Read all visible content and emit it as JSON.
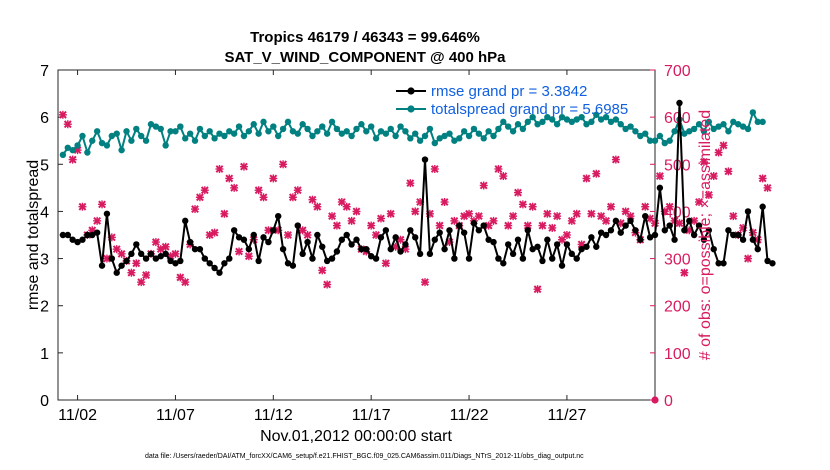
{
  "chart_data": {
    "type": "line",
    "title": "Tropics 46179 / 46343 = 99.646%",
    "subtitle": "SAT_V_WIND_COMPONENT @ 400 hPa",
    "xlabel": "Nov.01,2012 00:00:00 start",
    "ylabel_left": "rmse and totalspread",
    "ylabel_right": "# of obs: o=possible; ×=assimilated",
    "xlim": [
      0.5,
      31.0
    ],
    "ylim_left": [
      0,
      7
    ],
    "ylim_right": [
      0,
      700
    ],
    "x_tick_values": [
      1.5,
      6.5,
      11.5,
      16.5,
      21.5,
      26.5
    ],
    "x_tick_labels": [
      "11/02",
      "11/07",
      "11/12",
      "11/17",
      "11/22",
      "11/27"
    ],
    "y_left_ticks": [
      0,
      1,
      2,
      3,
      4,
      5,
      6,
      7
    ],
    "y_right_ticks": [
      0,
      100,
      200,
      300,
      400,
      500,
      600,
      700
    ],
    "legend": [
      {
        "name": "rmse grand pr = 3.3842",
        "color": "#000000"
      },
      {
        "name": "totalspread grand pr = 5.6985",
        "color": "#008080"
      }
    ],
    "footnote": "data file: /Users/raeder/DAI/ATM_forcXX/CAM6_setup/f.e21.FHIST_BGC.f09_025.CAM6assim.011/Diags_NTrS_2012-11/obs_diag_output.nc",
    "colors": {
      "rmse": "#000000",
      "spread": "#008080",
      "obs": "#d81b60"
    },
    "x_start": 0.75,
    "x_step": 0.25,
    "series": [
      {
        "name": "rmse",
        "axis": "left",
        "values": [
          3.5,
          3.5,
          3.4,
          3.35,
          3.4,
          3.5,
          3.5,
          3.55,
          2.85,
          3.95,
          3.0,
          2.7,
          2.85,
          2.95,
          3.1,
          3.3,
          3.1,
          3.0,
          3.1,
          3.0,
          3.05,
          3.1,
          2.95,
          2.9,
          2.95,
          3.8,
          3.35,
          3.2,
          3.2,
          3.0,
          2.9,
          2.8,
          2.7,
          2.9,
          3.0,
          3.6,
          3.45,
          3.4,
          3.2,
          3.5,
          2.95,
          3.45,
          3.35,
          3.6,
          3.9,
          3.2,
          2.9,
          2.85,
          3.7,
          3.1,
          3.35,
          3.0,
          3.5,
          3.25,
          2.95,
          3.0,
          3.15,
          3.4,
          3.5,
          3.3,
          3.4,
          3.2,
          3.2,
          3.05,
          3.0,
          3.45,
          3.6,
          3.2,
          3.45,
          3.15,
          3.3,
          3.6,
          3.45,
          3.1,
          5.1,
          3.1,
          3.4,
          3.55,
          3.2,
          3.6,
          3.0,
          3.7,
          3.55,
          3.0,
          3.75,
          3.6,
          3.7,
          3.4,
          3.35,
          3.0,
          2.9,
          3.3,
          3.1,
          3.4,
          3.0,
          3.6,
          3.2,
          3.25,
          2.95,
          3.4,
          3.0,
          3.3,
          2.85,
          3.3,
          3.1,
          3.0,
          3.2,
          3.25,
          3.45,
          3.25,
          3.55,
          3.5,
          3.6,
          3.8,
          3.55,
          3.7,
          3.8,
          3.6,
          3.4,
          3.9,
          3.45,
          3.5,
          4.5,
          3.6,
          3.7,
          3.4,
          6.3,
          3.6,
          3.8,
          3.5,
          3.7,
          3.4,
          3.6,
          3.2,
          2.9,
          2.9,
          3.6,
          3.5,
          3.5,
          3.4,
          4.0,
          3.4,
          3.2,
          4.1,
          2.95,
          2.9
        ]
      },
      {
        "name": "totalspread",
        "axis": "left",
        "values": [
          5.2,
          5.35,
          5.3,
          5.4,
          5.6,
          5.25,
          5.5,
          5.7,
          5.45,
          5.4,
          5.6,
          5.65,
          5.3,
          5.7,
          5.5,
          5.75,
          5.6,
          5.5,
          5.85,
          5.8,
          5.75,
          5.4,
          5.7,
          5.7,
          5.8,
          5.55,
          5.65,
          5.5,
          5.75,
          5.6,
          5.7,
          5.55,
          5.65,
          5.6,
          5.7,
          5.65,
          5.8,
          5.6,
          5.7,
          5.85,
          5.65,
          5.9,
          5.7,
          5.8,
          5.6,
          5.75,
          5.9,
          5.7,
          5.65,
          5.85,
          5.75,
          5.6,
          5.7,
          5.8,
          5.65,
          5.9,
          5.75,
          5.65,
          5.7,
          5.6,
          5.75,
          5.85,
          5.7,
          5.8,
          5.55,
          5.7,
          5.65,
          5.75,
          5.6,
          5.8,
          5.7,
          5.55,
          5.65,
          5.5,
          5.6,
          5.75,
          5.45,
          5.55,
          5.6,
          5.65,
          5.5,
          5.55,
          5.7,
          5.6,
          5.75,
          5.65,
          5.55,
          5.7,
          5.6,
          5.75,
          5.9,
          5.8,
          5.7,
          5.85,
          5.75,
          5.9,
          6.0,
          5.85,
          5.9,
          6.0,
          5.95,
          5.85,
          6.0,
          5.95,
          5.9,
          5.95,
          6.0,
          5.85,
          5.9,
          6.05,
          5.95,
          6.0,
          5.9,
          5.95,
          5.85,
          5.75,
          5.8,
          5.7,
          5.6,
          5.65,
          5.5,
          5.5,
          5.6,
          5.45,
          5.5,
          5.7,
          5.95,
          5.65,
          5.7,
          5.75,
          5.85,
          5.7,
          5.9,
          5.75,
          5.8,
          5.85,
          5.7,
          5.9,
          5.85,
          5.8,
          5.75,
          6.1,
          5.9,
          5.9
        ]
      },
      {
        "name": "obs_count",
        "axis": "right",
        "values": [
          605,
          585,
          510,
          530,
          410,
          350,
          360,
          380,
          415,
          300,
          345,
          320,
          310,
          295,
          270,
          290,
          250,
          265,
          310,
          335,
          320,
          325,
          305,
          310,
          260,
          250,
          330,
          405,
          430,
          445,
          350,
          355,
          490,
          395,
          470,
          450,
          315,
          495,
          305,
          340,
          445,
          430,
          360,
          470,
          360,
          500,
          350,
          430,
          445,
          360,
          350,
          425,
          410,
          275,
          245,
          390,
          370,
          420,
          410,
          380,
          400,
          320,
          315,
          370,
          350,
          385,
          290,
          395,
          325,
          340,
          320,
          460,
          400,
          420,
          250,
          395,
          490,
          370,
          420,
          335,
          380,
          370,
          390,
          395,
          380,
          390,
          455,
          370,
          380,
          490,
          475,
          370,
          390,
          440,
          415,
          370,
          410,
          235,
          370,
          395,
          365,
          390,
          340,
          350,
          380,
          395,
          330,
          470,
          395,
          480,
          390,
          380,
          410,
          510,
          375,
          400,
          390,
          355,
          340,
          410,
          385,
          375,
          475,
          400,
          410,
          380,
          375,
          270,
          360,
          380,
          420,
          505,
          435,
          475,
          525,
          540,
          485,
          390,
          350,
          365,
          300,
          355,
          340,
          470,
          450
        ]
      }
    ]
  }
}
